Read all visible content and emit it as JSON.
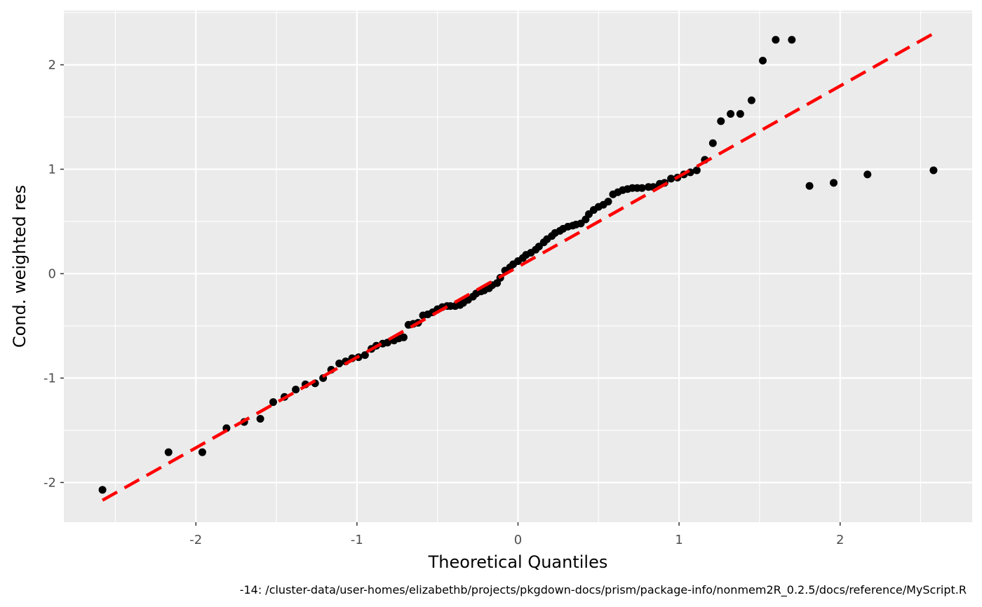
{
  "chart_data": {
    "type": "scatter",
    "title": "",
    "xlabel": "Theoretical Quantiles",
    "ylabel": "Cond. weighted res",
    "xlim": [
      -2.82,
      2.82
    ],
    "ylim": [
      -2.38,
      2.52
    ],
    "x_ticks": [
      -2,
      -1,
      0,
      1,
      2
    ],
    "x_tick_labels": [
      "-2",
      "-1",
      "0",
      "1",
      "2"
    ],
    "y_ticks": [
      -2,
      -1,
      0,
      1,
      2
    ],
    "y_tick_labels": [
      "-2",
      "-1",
      "0",
      "1",
      "2"
    ],
    "grid": true,
    "panel_background": "#ebebeb",
    "point_color": "#000000",
    "reference_line": {
      "style": "dashed",
      "color": "#ff0000",
      "x": [
        -2.58,
        2.58
      ],
      "y": [
        -2.17,
        2.3
      ]
    },
    "series": [
      {
        "x": [
          -2.58,
          -2.17,
          -1.96,
          -1.81,
          -1.7,
          -1.6,
          -1.52,
          -1.45,
          -1.38,
          -1.32,
          -1.26,
          -1.21,
          -1.16,
          -1.11,
          -1.07,
          -1.03,
          -0.99,
          -0.95,
          -0.91,
          -0.88,
          -0.84,
          -0.81,
          -0.77,
          -0.74,
          -0.71,
          -0.68,
          -0.65,
          -0.62,
          -0.59,
          -0.56,
          -0.53,
          -0.5,
          -0.47,
          -0.44,
          -0.42,
          -0.39,
          -0.36,
          -0.34,
          -0.31,
          -0.28,
          -0.26,
          -0.23,
          -0.21,
          -0.18,
          -0.16,
          -0.13,
          -0.11,
          -0.08,
          -0.05,
          -0.03,
          0.0,
          0.03,
          0.05,
          0.08,
          0.11,
          0.13,
          0.16,
          0.18,
          0.21,
          0.23,
          0.26,
          0.28,
          0.31,
          0.34,
          0.36,
          0.39,
          0.42,
          0.44,
          0.47,
          0.5,
          0.53,
          0.56,
          0.59,
          0.62,
          0.65,
          0.68,
          0.71,
          0.74,
          0.77,
          0.81,
          0.84,
          0.88,
          0.91,
          0.95,
          0.99,
          1.03,
          1.07,
          1.11,
          1.16,
          1.21,
          1.26,
          1.32,
          1.38,
          1.45,
          1.52,
          1.6,
          1.7,
          1.81,
          1.96,
          2.17,
          2.58
        ],
        "y": [
          -2.07,
          -1.71,
          -1.71,
          -1.48,
          -1.42,
          -1.39,
          -1.23,
          -1.18,
          -1.11,
          -1.06,
          -1.05,
          -1.0,
          -0.92,
          -0.86,
          -0.84,
          -0.81,
          -0.8,
          -0.78,
          -0.72,
          -0.69,
          -0.67,
          -0.66,
          -0.64,
          -0.62,
          -0.61,
          -0.49,
          -0.48,
          -0.47,
          -0.4,
          -0.39,
          -0.37,
          -0.34,
          -0.32,
          -0.31,
          -0.31,
          -0.31,
          -0.3,
          -0.28,
          -0.25,
          -0.22,
          -0.19,
          -0.17,
          -0.16,
          -0.14,
          -0.11,
          -0.09,
          -0.04,
          0.03,
          0.06,
          0.09,
          0.12,
          0.15,
          0.18,
          0.2,
          0.23,
          0.26,
          0.3,
          0.33,
          0.36,
          0.39,
          0.41,
          0.43,
          0.45,
          0.46,
          0.47,
          0.48,
          0.52,
          0.57,
          0.61,
          0.64,
          0.66,
          0.69,
          0.76,
          0.78,
          0.8,
          0.81,
          0.82,
          0.82,
          0.82,
          0.83,
          0.83,
          0.86,
          0.87,
          0.91,
          0.92,
          0.95,
          0.97,
          0.99,
          1.09,
          1.25,
          1.46,
          1.53,
          1.53,
          1.66,
          2.04,
          2.24,
          2.24,
          0.84,
          0.87,
          0.95,
          0.99
        ]
      }
    ]
  },
  "caption": "-14: /cluster-data/user-homes/elizabethb/projects/pkgdown-docs/prism/package-info/nonmem2R_0.2.5/docs/reference/MyScript.R"
}
